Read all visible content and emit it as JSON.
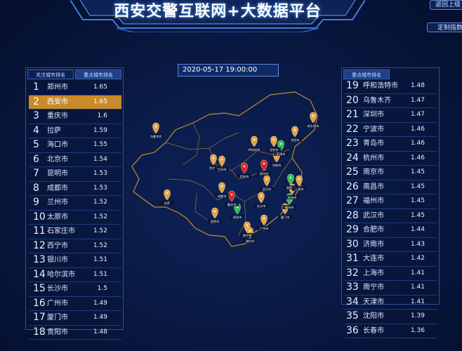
{
  "header": {
    "title": "西安交警互联网+大数据平台",
    "back_label": "返回上级",
    "custom_label": "定制指数"
  },
  "date": "2020-05-17 19:00:00",
  "left_panel": {
    "tabs": [
      "关注城市排名",
      "重点城市排名"
    ],
    "rows": [
      {
        "rank": "1",
        "city": "郑州市",
        "value": "1.65"
      },
      {
        "rank": "2",
        "city": "西安市",
        "value": "1.65"
      },
      {
        "rank": "3",
        "city": "重庆市",
        "value": "1.6"
      },
      {
        "rank": "4",
        "city": "拉萨",
        "value": "1.59"
      },
      {
        "rank": "5",
        "city": "海口市",
        "value": "1.55"
      },
      {
        "rank": "6",
        "city": "北京市",
        "value": "1.54"
      },
      {
        "rank": "7",
        "city": "昆明市",
        "value": "1.53"
      },
      {
        "rank": "8",
        "city": "成都市",
        "value": "1.53"
      },
      {
        "rank": "9",
        "city": "兰州市",
        "value": "1.52"
      },
      {
        "rank": "10",
        "city": "太原市",
        "value": "1.52"
      },
      {
        "rank": "11",
        "city": "石家庄市",
        "value": "1.52"
      },
      {
        "rank": "12",
        "city": "西宁市",
        "value": "1.52"
      },
      {
        "rank": "13",
        "city": "银川市",
        "value": "1.51"
      },
      {
        "rank": "14",
        "city": "哈尔滨市",
        "value": "1.51"
      },
      {
        "rank": "15",
        "city": "长沙市",
        "value": "1.5"
      },
      {
        "rank": "16",
        "city": "广州市",
        "value": "1.49"
      },
      {
        "rank": "17",
        "city": "厦门市",
        "value": "1.49"
      },
      {
        "rank": "18",
        "city": "贵阳市",
        "value": "1.48"
      }
    ]
  },
  "right_panel": {
    "tabs": [
      "重点城市排名"
    ],
    "rows": [
      {
        "rank": "19",
        "city": "呼和浩特市",
        "value": "1.48"
      },
      {
        "rank": "20",
        "city": "乌鲁木齐",
        "value": "1.47"
      },
      {
        "rank": "21",
        "city": "深圳市",
        "value": "1.47"
      },
      {
        "rank": "22",
        "city": "宁波市",
        "value": "1.46"
      },
      {
        "rank": "23",
        "city": "青岛市",
        "value": "1.46"
      },
      {
        "rank": "24",
        "city": "杭州市",
        "value": "1.46"
      },
      {
        "rank": "25",
        "city": "南京市",
        "value": "1.45"
      },
      {
        "rank": "26",
        "city": "南昌市",
        "value": "1.45"
      },
      {
        "rank": "27",
        "city": "福州市",
        "value": "1.45"
      },
      {
        "rank": "28",
        "city": "武汉市",
        "value": "1.45"
      },
      {
        "rank": "29",
        "city": "合肥市",
        "value": "1.44"
      },
      {
        "rank": "30",
        "city": "济南市",
        "value": "1.43"
      },
      {
        "rank": "31",
        "city": "大连市",
        "value": "1.42"
      },
      {
        "rank": "32",
        "city": "上海市",
        "value": "1.41"
      },
      {
        "rank": "33",
        "city": "南宁市",
        "value": "1.41"
      },
      {
        "rank": "34",
        "city": "天津市",
        "value": "1.41"
      },
      {
        "rank": "35",
        "city": "沈阳市",
        "value": "1.39"
      },
      {
        "rank": "36",
        "city": "长春市",
        "value": "1.36"
      }
    ]
  },
  "map": {
    "labels": [
      "乌鲁木齐",
      "拉萨",
      "哈尔滨市",
      "呼和浩特",
      "西宁市",
      "兰州市",
      "成都市",
      "西安市",
      "郑州市",
      "北京市",
      "天津市",
      "济南市",
      "南京市",
      "上海市",
      "杭州市",
      "武汉市",
      "长沙市",
      "重庆市",
      "贵阳市",
      "昆明市",
      "南宁市",
      "广州市",
      "厦门市",
      "海口市",
      "福州市",
      "沈阳市"
    ],
    "colors": {
      "pin_orange": "#e7a23a",
      "pin_red": "#e0201c",
      "pin_green": "#2fbf4a",
      "border": "#c48a2a"
    }
  }
}
